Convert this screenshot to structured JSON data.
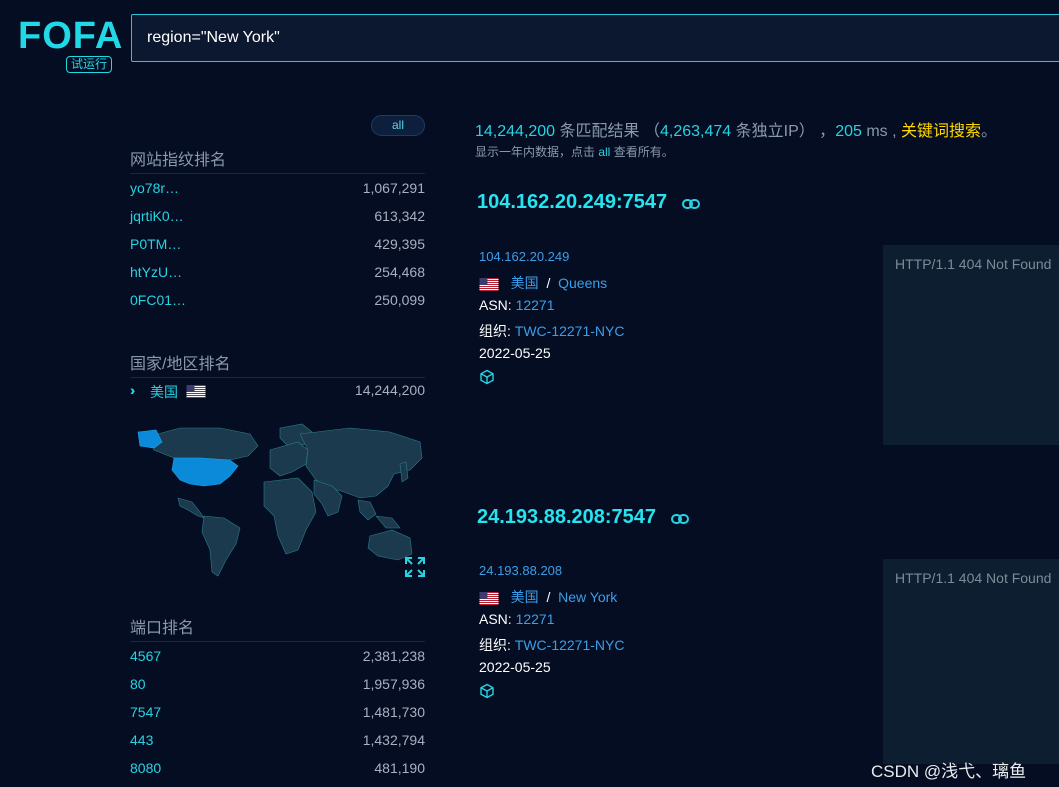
{
  "header": {
    "logo_text": "FOFA",
    "logo_badge": "试运行",
    "search_value": "region=\"New York\""
  },
  "sidebar": {
    "all_button": "all",
    "fingerprint": {
      "title": "网站指纹排名",
      "items": [
        {
          "label": "yo78r…",
          "count": "1,067,291"
        },
        {
          "label": "jqrtiK0…",
          "count": "613,342"
        },
        {
          "label": "P0TM…",
          "count": "429,395"
        },
        {
          "label": "htYzU…",
          "count": "254,468"
        },
        {
          "label": "0FC01…",
          "count": "250,099"
        }
      ]
    },
    "country": {
      "title": "国家/地区排名",
      "items": [
        {
          "label": "美国",
          "count": "14,244,200"
        }
      ]
    },
    "ports": {
      "title": "端口排名",
      "items": [
        {
          "label": "4567",
          "count": "2,381,238"
        },
        {
          "label": "80",
          "count": "1,957,936"
        },
        {
          "label": "7547",
          "count": "1,481,730"
        },
        {
          "label": "443",
          "count": "1,432,794"
        },
        {
          "label": "8080",
          "count": "481,190"
        }
      ]
    }
  },
  "summary": {
    "total": "14,244,200",
    "total_suffix": " 条匹配结果 （",
    "unique_ip": "4,263,474",
    "unique_suffix": " 条独立IP） ，",
    "time": "205",
    "time_unit": " ms , ",
    "keyword_search": "关键词搜索",
    "end_punct": "。",
    "sub_prefix": "显示一年内数据，点击 ",
    "sub_all": "all",
    "sub_suffix": " 查看所有。"
  },
  "results": [
    {
      "title": "104.162.20.249:7547",
      "ip": "104.162.20.249",
      "country": "美国",
      "separator": "/",
      "city": "Queens",
      "asn_label": "ASN:",
      "asn": "12271",
      "org_label": "组织:",
      "org": "TWC-12271-NYC",
      "date": "2022-05-25",
      "response": "HTTP/1.1 404 Not Found"
    },
    {
      "title": "24.193.88.208:7547",
      "ip": "24.193.88.208",
      "country": "美国",
      "separator": "/",
      "city": "New York",
      "asn_label": "ASN:",
      "asn": "12271",
      "org_label": "组织:",
      "org": "TWC-12271-NYC",
      "date": "2022-05-25",
      "response": "HTTP/1.1 404 Not Found"
    }
  ],
  "watermark": "CSDN @浅弋、璃鱼",
  "colors": {
    "background": "#040d21",
    "accent": "#27d3e3",
    "link": "#3d9ee8",
    "highlight": "#ffd800"
  }
}
